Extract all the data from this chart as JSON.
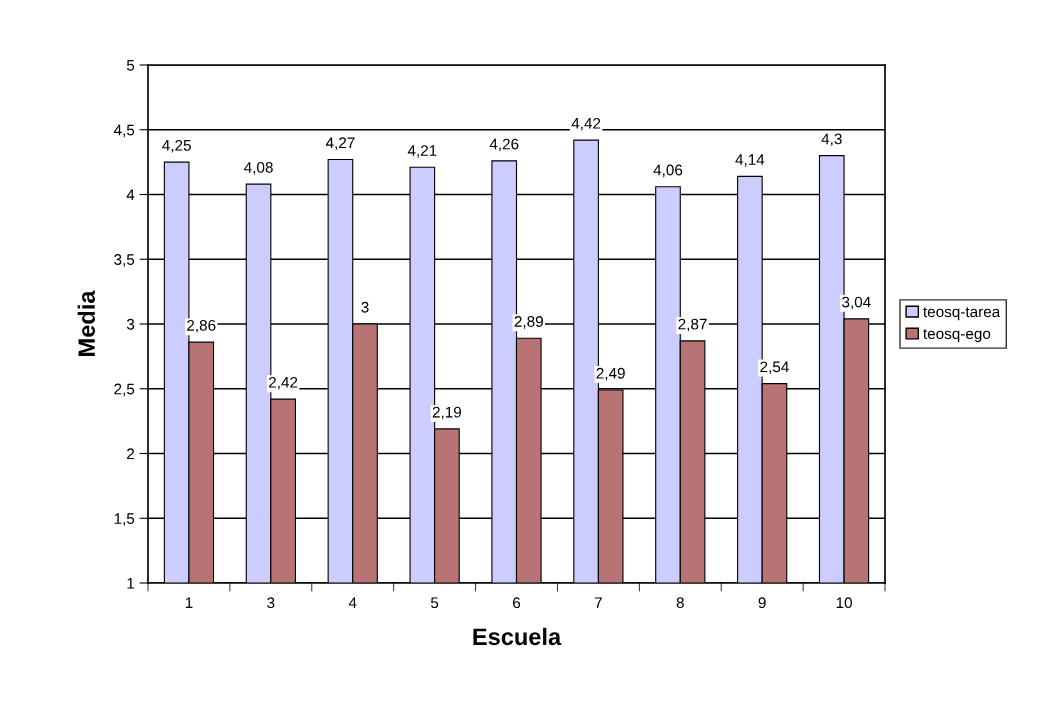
{
  "chart_data": {
    "type": "bar",
    "xlabel": "Escuela",
    "ylabel": "Media",
    "categories": [
      "1",
      "3",
      "4",
      "5",
      "6",
      "7",
      "8",
      "9",
      "10"
    ],
    "series": [
      {
        "name": "teosq-tarea",
        "color": "#ccccff",
        "values": [
          4.25,
          4.08,
          4.27,
          4.21,
          4.26,
          4.42,
          4.06,
          4.14,
          4.3
        ],
        "value_labels": [
          "4,25",
          "4,08",
          "4,27",
          "4,21",
          "4,26",
          "4,42",
          "4,06",
          "4,14",
          "4,3"
        ]
      },
      {
        "name": "teosq-ego",
        "color": "#b87474",
        "values": [
          2.86,
          2.42,
          3,
          2.19,
          2.89,
          2.49,
          2.87,
          2.54,
          3.04
        ],
        "value_labels": [
          "2,86",
          "2,42",
          "3",
          "2,19",
          "2,89",
          "2,49",
          "2,87",
          "2,54",
          "3,04"
        ]
      }
    ],
    "ylim": [
      1,
      5
    ],
    "yticks": [
      1,
      {
        "value": 1.5,
        "label": "1,5"
      },
      2,
      {
        "value": 2.5,
        "label": "2,5"
      },
      3,
      {
        "value": 3.5,
        "label": "3,5"
      },
      4,
      {
        "value": 4.5,
        "label": "4,5"
      },
      5
    ],
    "grid": "y",
    "legend": "right"
  }
}
